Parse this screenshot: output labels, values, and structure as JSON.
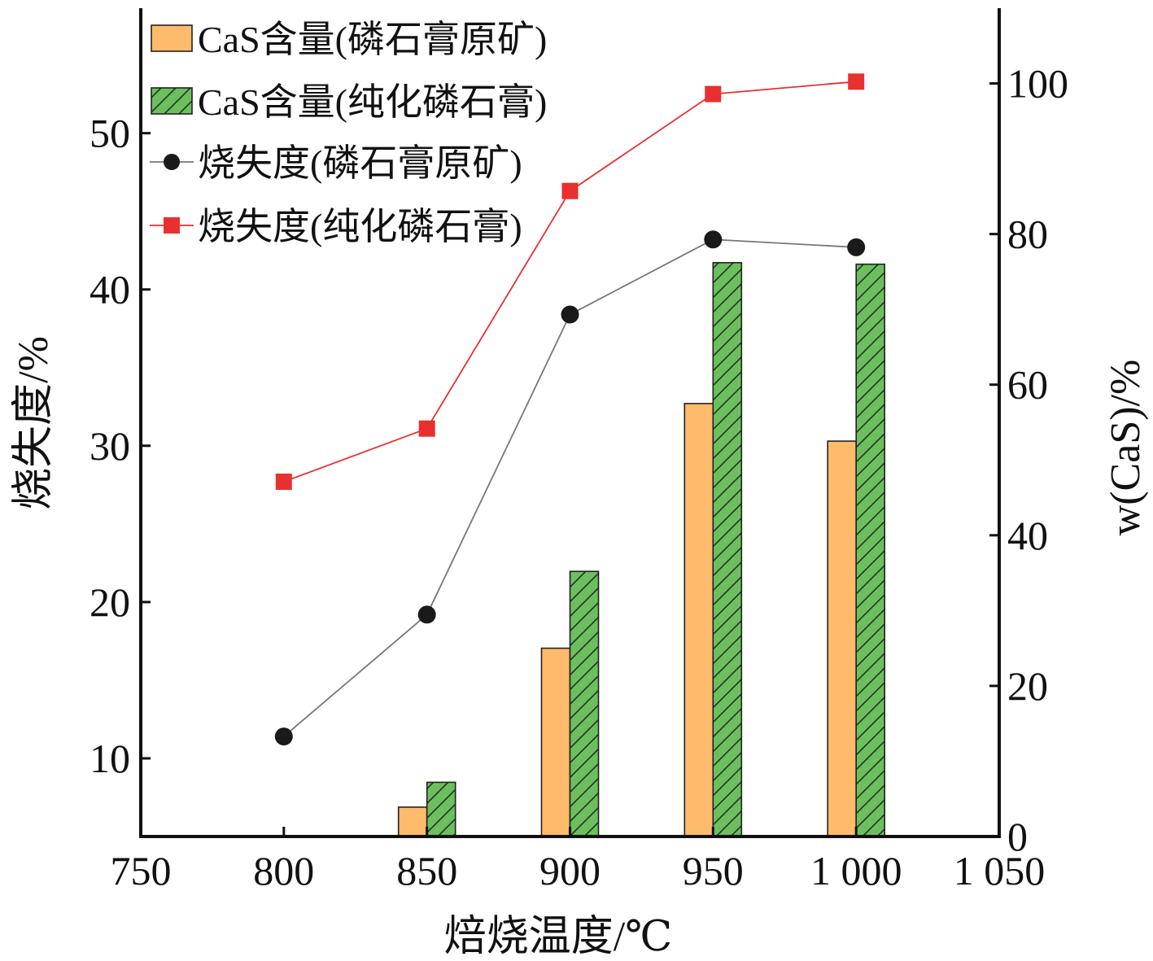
{
  "chart_data": {
    "type": "bar",
    "xlabel": "焙烧温度/℃",
    "ylabel_left": "烧失度/%",
    "ylabel_right": "w(CaS)/%",
    "x_ticks": [
      "750",
      "800",
      "850",
      "900",
      "950",
      "1 000",
      "1 050"
    ],
    "x_tick_values": [
      750,
      800,
      850,
      900,
      950,
      1000,
      1050
    ],
    "xlim": [
      750,
      1050
    ],
    "ylim_left": [
      5,
      58
    ],
    "ylim_right": [
      0,
      110
    ],
    "left_ticks": [
      10,
      20,
      30,
      40,
      50
    ],
    "right_ticks": [
      0,
      20,
      40,
      60,
      80,
      100
    ],
    "series": [
      {
        "name": "CaS含量(磷石膏原矿)",
        "kind": "bar",
        "axis": "right",
        "color": "#FDBB6B",
        "pattern": "none",
        "x": [
          850,
          900,
          950,
          1000
        ],
        "values": [
          3.9,
          25,
          57.5,
          52.5
        ]
      },
      {
        "name": "CaS含量(纯化磷石膏)",
        "kind": "bar",
        "axis": "right",
        "color": "#6DBE5F",
        "pattern": "hatch",
        "x": [
          850,
          900,
          950,
          1000
        ],
        "values": [
          7.2,
          35.2,
          76.2,
          76
        ]
      },
      {
        "name": "烧失度(磷石膏原矿)",
        "kind": "line",
        "axis": "left",
        "color": "#1a1a1a",
        "line_color": "#777777",
        "marker": "circle",
        "x": [
          800,
          850,
          900,
          950,
          1000
        ],
        "values": [
          11.4,
          19.2,
          38.4,
          43.2,
          42.7
        ]
      },
      {
        "name": "烧失度(纯化磷石膏)",
        "kind": "line",
        "axis": "left",
        "color": "#E8302F",
        "line_color": "#E8302F",
        "marker": "square",
        "x": [
          800,
          850,
          900,
          950,
          1000
        ],
        "values": [
          27.7,
          31.1,
          46.3,
          52.5,
          53.3
        ]
      }
    ],
    "legend_position": "top-left",
    "grid": false
  }
}
